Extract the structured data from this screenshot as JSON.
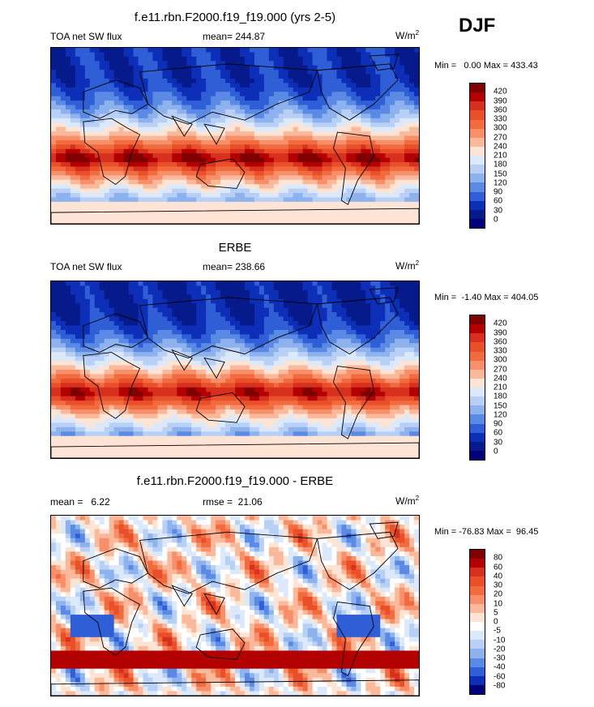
{
  "season": "DJF",
  "panel1": {
    "title": "f.e11.rbn.F2000.f19_f19.000 (yrs 2-5)",
    "left_label": "TOA net SW flux",
    "mean_text": "mean= 244.87",
    "units_base": "W/m",
    "units_exp": "2",
    "minmax": "Min =   0.00 Max = 433.43"
  },
  "panel2": {
    "title": "ERBE",
    "left_label": "TOA net SW flux",
    "mean_text": "mean= 238.66",
    "units_base": "W/m",
    "units_exp": "2",
    "minmax": "Min =  -1.40 Max = 404.05"
  },
  "panel3": {
    "title": "f.e11.rbn.F2000.f19_f19.000 - ERBE",
    "mean_text": "mean =   6.22",
    "rmse_text": "rmse =  21.06",
    "units_base": "W/m",
    "units_exp": "2",
    "minmax": "Min = -76.83 Max =  96.45"
  },
  "colorbar_flux": {
    "labels": [
      "420",
      "390",
      "360",
      "330",
      "300",
      "270",
      "240",
      "210",
      "180",
      "150",
      "120",
      "90",
      "60",
      "30",
      "0"
    ],
    "colors": [
      "#7f0000",
      "#b30000",
      "#d7301f",
      "#e9502a",
      "#f26b3f",
      "#f7906a",
      "#fbb99c",
      "#fde4d4",
      "#dce9fb",
      "#b8d0f6",
      "#8db2ee",
      "#5b8ae4",
      "#2f5ed6",
      "#0d2fb8",
      "#061a8c",
      "#000078"
    ]
  },
  "colorbar_diff": {
    "labels": [
      "80",
      "60",
      "40",
      "30",
      "20",
      "10",
      "5",
      "0",
      "-5",
      "-10",
      "-20",
      "-30",
      "-40",
      "-60",
      "-80"
    ],
    "colors": [
      "#7f0000",
      "#b30000",
      "#d7301f",
      "#e9502a",
      "#f26b3f",
      "#f7906a",
      "#fbb99c",
      "#fde4d4",
      "#ffffff",
      "#dce9fb",
      "#b8d0f6",
      "#8db2ee",
      "#5b8ae4",
      "#2f5ed6",
      "#0d2fb8",
      "#000078"
    ]
  }
}
